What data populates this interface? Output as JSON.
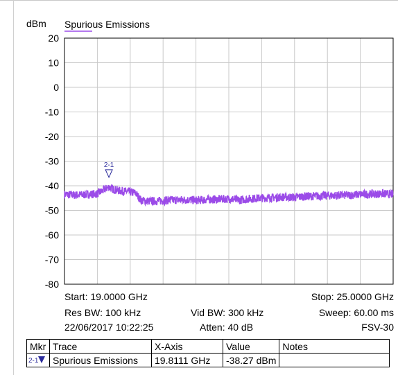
{
  "chart_data": {
    "type": "line",
    "title": "Spurious Emissions",
    "ylabel": "dBm",
    "xlim": [
      19.0,
      25.0
    ],
    "ylim": [
      -80,
      20
    ],
    "yticks": [
      "20",
      "10",
      "0",
      "-10",
      "-20",
      "-30",
      "-40",
      "-50",
      "-60",
      "-70",
      "-80"
    ],
    "grid": true,
    "series": [
      {
        "name": "Spurious Emissions",
        "color": "#9b4be8",
        "x": [
          19.0,
          19.2,
          19.4,
          19.6,
          19.7,
          19.81,
          19.9,
          20.0,
          20.1,
          20.2,
          20.3,
          20.4,
          20.6,
          20.8,
          21.0,
          21.2,
          21.4,
          21.6,
          21.8,
          22.0,
          22.2,
          22.4,
          22.6,
          22.8,
          23.0,
          23.2,
          23.4,
          23.6,
          23.8,
          24.0,
          24.2,
          24.4,
          24.6,
          24.8,
          25.0
        ],
        "y": [
          -43.5,
          -43.8,
          -43.6,
          -43.2,
          -42.0,
          -40.5,
          -41.5,
          -42.0,
          -42.3,
          -42.5,
          -43.0,
          -46.0,
          -46.3,
          -46.0,
          -45.8,
          -45.7,
          -45.9,
          -45.6,
          -45.5,
          -45.3,
          -45.8,
          -45.2,
          -45.0,
          -44.8,
          -44.6,
          -44.7,
          -44.3,
          -44.2,
          -44.0,
          -43.9,
          -43.8,
          -43.5,
          -43.4,
          -43.2,
          -43.5
        ]
      }
    ],
    "marker": {
      "label": "2-1",
      "x": 19.8111,
      "y": -38.27
    }
  },
  "info": {
    "start": "Start: 19.0000 GHz",
    "stop": "Stop: 25.0000 GHz",
    "res_bw": "Res BW: 100 kHz",
    "vid_bw": "Vid BW: 300 kHz",
    "sweep": "Sweep: 60.00 ms",
    "date": "22/06/2017 10:22:25",
    "atten": "Atten: 40 dB",
    "device": "FSV-30"
  },
  "marker_table": {
    "headers": [
      "Mkr",
      "Trace",
      "X-Axis",
      "Value",
      "Notes"
    ],
    "rows": [
      {
        "mkr": "2-1",
        "trace": "Spurious Emissions",
        "x_axis": "19.8111 GHz",
        "value": "-38.27 dBm",
        "notes": ""
      }
    ]
  }
}
